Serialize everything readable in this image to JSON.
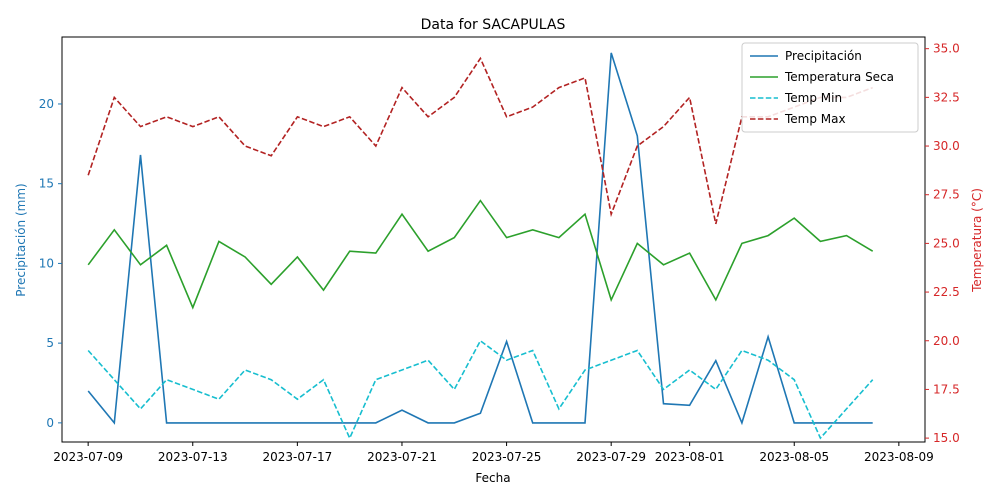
{
  "chart_data": {
    "type": "line",
    "title": "Data for SACAPULAS",
    "xlabel": "Fecha",
    "ylabel_left": "Precipitación (mm)",
    "ylabel_right": "Temperatura (°C)",
    "left_color": "#1f77b4",
    "right_color": "#d62728",
    "legend_position": "top-right",
    "xlim": [
      "2023-07-08",
      "2023-08-10"
    ],
    "ylim_left": [
      -1.2,
      24.2
    ],
    "ylim_right": [
      14.8,
      35.6
    ],
    "x_ticks": [
      "2023-07-09",
      "2023-07-13",
      "2023-07-17",
      "2023-07-21",
      "2023-07-25",
      "2023-07-29",
      "2023-08-01",
      "2023-08-05",
      "2023-08-09"
    ],
    "y_ticks_left": [
      0,
      5,
      10,
      15,
      20
    ],
    "y_ticks_right": [
      15.0,
      17.5,
      20.0,
      22.5,
      25.0,
      27.5,
      30.0,
      32.5,
      35.0
    ],
    "x": [
      "2023-07-09",
      "2023-07-10",
      "2023-07-11",
      "2023-07-12",
      "2023-07-13",
      "2023-07-14",
      "2023-07-15",
      "2023-07-16",
      "2023-07-17",
      "2023-07-18",
      "2023-07-19",
      "2023-07-20",
      "2023-07-21",
      "2023-07-22",
      "2023-07-23",
      "2023-07-24",
      "2023-07-25",
      "2023-07-26",
      "2023-07-27",
      "2023-07-28",
      "2023-07-29",
      "2023-07-30",
      "2023-07-31",
      "2023-08-01",
      "2023-08-02",
      "2023-08-03",
      "2023-08-04",
      "2023-08-05",
      "2023-08-06",
      "2023-08-07",
      "2023-08-08"
    ],
    "series": [
      {
        "name": "Precipitación",
        "axis": "left",
        "color": "#1f77b4",
        "dash": "solid",
        "values": [
          2.0,
          0.0,
          16.8,
          0.0,
          0.0,
          0.0,
          0.0,
          0.0,
          0.0,
          0.0,
          0.0,
          0.0,
          0.8,
          0.0,
          0.0,
          0.6,
          5.1,
          0.0,
          0.0,
          0.0,
          23.2,
          18.0,
          1.2,
          1.1,
          3.9,
          0.0,
          5.4,
          0.0,
          0.0,
          0.0,
          0.0
        ]
      },
      {
        "name": "Temperatura Seca",
        "axis": "right",
        "color": "#2ca02c",
        "dash": "solid",
        "values": [
          23.9,
          25.7,
          23.9,
          24.9,
          21.7,
          25.1,
          24.3,
          22.9,
          24.3,
          22.6,
          24.6,
          24.5,
          26.5,
          24.6,
          25.3,
          27.2,
          25.3,
          25.7,
          25.3,
          26.5,
          22.1,
          25.0,
          23.9,
          24.5,
          22.1,
          25.0,
          25.4,
          26.3,
          25.1,
          25.4,
          24.6
        ]
      },
      {
        "name": "Temp Min",
        "axis": "right",
        "color": "#17becf",
        "dash": "dashed",
        "values": [
          19.5,
          18.0,
          16.5,
          18.0,
          17.5,
          17.0,
          18.5,
          18.0,
          17.0,
          18.0,
          15.0,
          18.0,
          18.5,
          19.0,
          17.5,
          20.0,
          19.0,
          19.5,
          16.5,
          18.5,
          19.0,
          19.5,
          17.5,
          18.5,
          17.5,
          19.5,
          19.0,
          18.0,
          15.0,
          16.5,
          18.0
        ]
      },
      {
        "name": "Temp Max",
        "axis": "right",
        "color": "#b22222",
        "dash": "dashed",
        "values": [
          28.5,
          32.5,
          31.0,
          31.5,
          31.0,
          31.5,
          30.0,
          29.5,
          31.5,
          31.0,
          31.5,
          30.0,
          33.0,
          31.5,
          32.5,
          34.5,
          31.5,
          32.0,
          33.0,
          33.5,
          26.5,
          30.0,
          31.0,
          32.5,
          26.0,
          31.5,
          31.5,
          32.0,
          32.5,
          32.5,
          33.0
        ]
      }
    ]
  }
}
